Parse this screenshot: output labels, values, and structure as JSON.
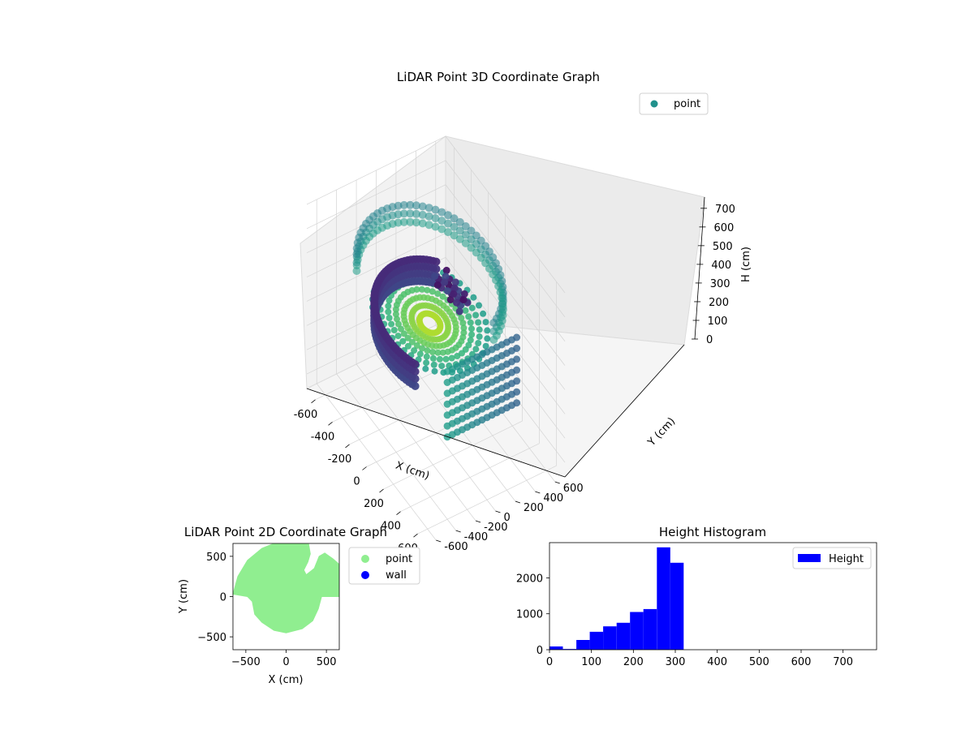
{
  "colors": {
    "point_2d": "#90ee90",
    "wall_2d": "#0000ff",
    "histogram": "#0000ff",
    "legend_point_3d": "#21918c",
    "pane": "#f2f2f2",
    "grid": "#cccccc"
  },
  "chart_data": [
    {
      "type": "scatter3d",
      "title": "LiDAR Point 3D Coordinate Graph",
      "xlabel": "X (cm)",
      "ylabel": "Y (cm)",
      "zlabel": "H (cm)",
      "xlim": [
        -700,
        700
      ],
      "ylim": [
        -700,
        700
      ],
      "zlim": [
        0,
        760
      ],
      "z_inverted": true,
      "xticks": [
        "-600",
        "-400",
        "-200",
        "0",
        "200",
        "400",
        "600"
      ],
      "yticks": [
        "-600",
        "-400",
        "-200",
        "0",
        "200",
        "400",
        "600"
      ],
      "zticks": [
        "0",
        "100",
        "200",
        "300",
        "400",
        "500",
        "600",
        "700"
      ],
      "legend": [
        "point"
      ],
      "legend_position": "upper right",
      "colormap": "viridis",
      "point_count_approx": 11000
    },
    {
      "type": "scatter",
      "title": "LiDAR Point 2D Coordinate Graph",
      "xlabel": "X (cm)",
      "ylabel": "Y (cm)",
      "xlim": [
        -660,
        660
      ],
      "ylim": [
        -660,
        660
      ],
      "xticks": [
        "−500",
        "0",
        "500"
      ],
      "yticks": [
        "−500",
        "0",
        "500"
      ],
      "legend": [
        "point",
        "wall"
      ],
      "legend_position": "outside upper right",
      "outline": [
        [
          -660,
          30
        ],
        [
          -600,
          250
        ],
        [
          -480,
          450
        ],
        [
          -300,
          600
        ],
        [
          -150,
          660
        ],
        [
          100,
          660
        ],
        [
          280,
          650
        ],
        [
          300,
          530
        ],
        [
          270,
          430
        ],
        [
          220,
          330
        ],
        [
          250,
          270
        ],
        [
          350,
          350
        ],
        [
          410,
          500
        ],
        [
          480,
          540
        ],
        [
          580,
          470
        ],
        [
          660,
          400
        ],
        [
          660,
          0
        ],
        [
          440,
          0
        ],
        [
          400,
          -150
        ],
        [
          330,
          -300
        ],
        [
          200,
          -400
        ],
        [
          0,
          -450
        ],
        [
          -150,
          -420
        ],
        [
          -300,
          -320
        ],
        [
          -390,
          -220
        ],
        [
          -420,
          -60
        ],
        [
          -480,
          0
        ],
        [
          -660,
          30
        ]
      ]
    },
    {
      "type": "bar",
      "title": "Height Histogram",
      "legend": [
        "Height"
      ],
      "legend_position": "upper right",
      "xlim": [
        0,
        780
      ],
      "ylim": [
        0,
        2980
      ],
      "xticks": [
        "0",
        "100",
        "200",
        "300",
        "400",
        "500",
        "600",
        "700"
      ],
      "yticks": [
        "0",
        "1000",
        "2000"
      ],
      "bin_width": 32,
      "bins": [
        {
          "x0": 0,
          "count": 90
        },
        {
          "x0": 32,
          "count": 20
        },
        {
          "x0": 64,
          "count": 270
        },
        {
          "x0": 96,
          "count": 500
        },
        {
          "x0": 128,
          "count": 650
        },
        {
          "x0": 160,
          "count": 750
        },
        {
          "x0": 192,
          "count": 1050
        },
        {
          "x0": 224,
          "count": 1130
        },
        {
          "x0": 256,
          "count": 2850
        },
        {
          "x0": 288,
          "count": 2420
        }
      ]
    }
  ]
}
